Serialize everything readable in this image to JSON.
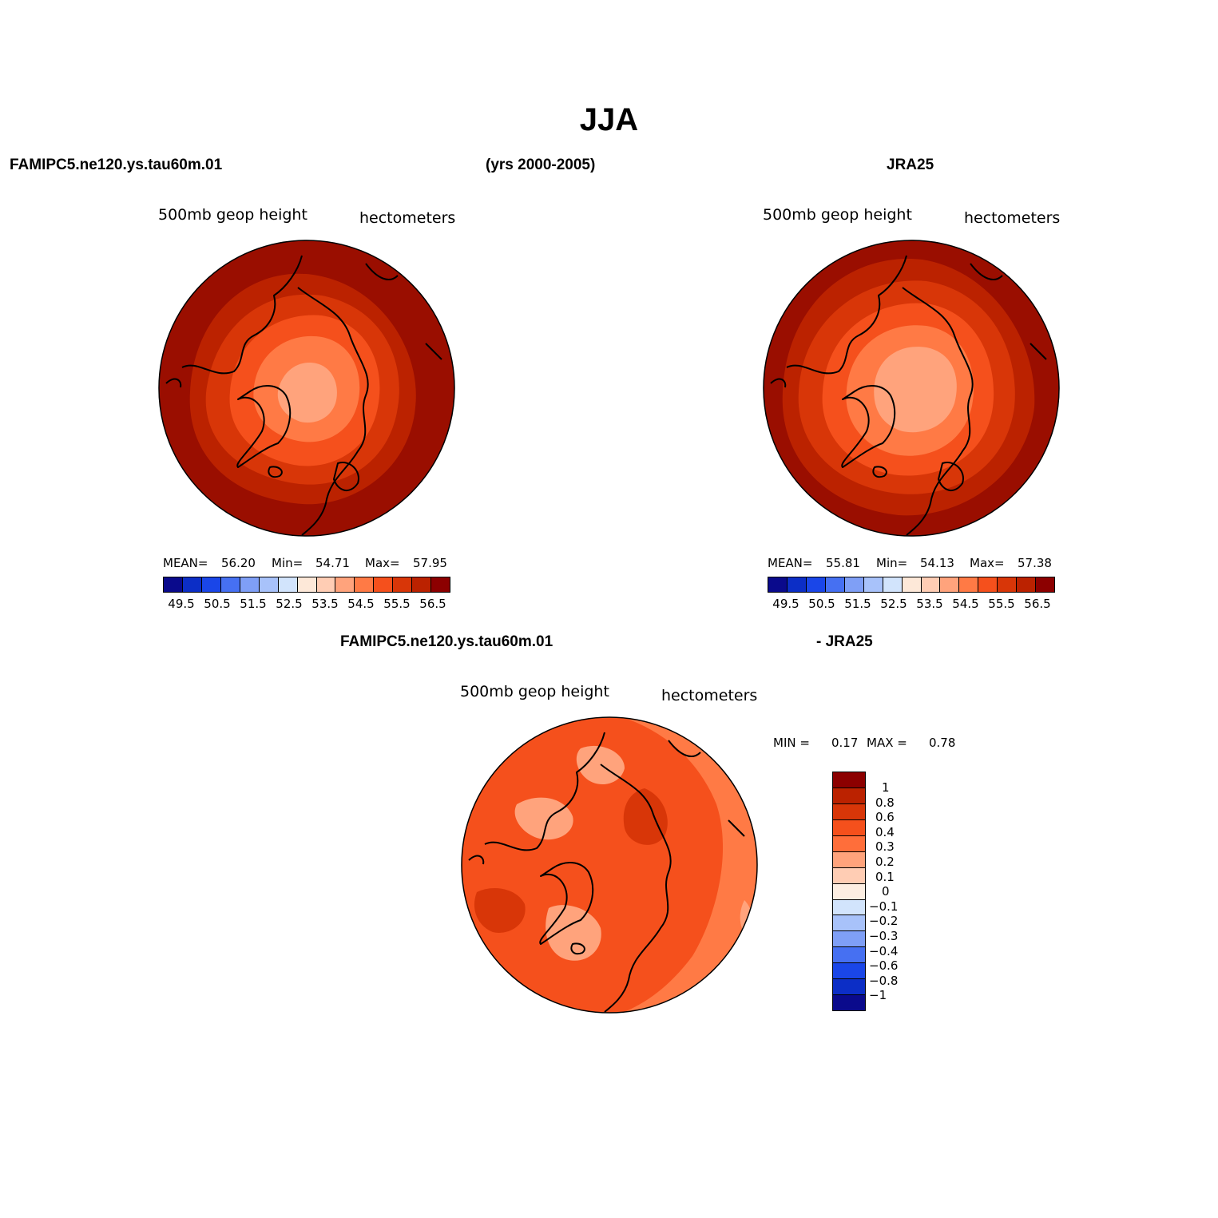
{
  "title": "JJA",
  "header": {
    "model_label": "FAMIPC5.ne120.ys.tau60m.01",
    "years_label": "(yrs 2000-2005)",
    "obs_label": "JRA25"
  },
  "panels": [
    {
      "variable": "500mb  geop  height",
      "units": "hectometers",
      "stats": {
        "mean_label": "MEAN=",
        "mean": "56.20",
        "min_label": "Min=",
        "min": "54.71",
        "max_label": "Max=",
        "max": "57.95"
      },
      "levels": [
        {
          "color": "#9a0e00"
        },
        {
          "color": "#bb2200"
        },
        {
          "color": "#d83608"
        },
        {
          "color": "#f5501c"
        },
        {
          "color": "#ff7a45"
        },
        {
          "color": "#ffa37c"
        }
      ]
    },
    {
      "variable": "500mb  geop  height",
      "units": "hectometers",
      "stats": {
        "mean_label": "MEAN=",
        "mean": "55.81",
        "min_label": "Min=",
        "min": "54.13",
        "max_label": "Max=",
        "max": "57.38"
      },
      "levels": [
        {
          "color": "#9a0e00"
        },
        {
          "color": "#bb2200"
        },
        {
          "color": "#d83608"
        },
        {
          "color": "#f5501c"
        },
        {
          "color": "#ff7a45"
        },
        {
          "color": "#ffa37c"
        }
      ]
    }
  ],
  "abs_colorbar": {
    "colors": [
      "#0a0a8c",
      "#0c2ec6",
      "#1a46e8",
      "#4670f2",
      "#7f9ff6",
      "#a8c2fa",
      "#d2e4fc",
      "#fde8d8",
      "#ffcdb4",
      "#ffa37c",
      "#ff7a45",
      "#f5501c",
      "#d83608",
      "#bb2200",
      "#8c0000"
    ],
    "ticks": [
      "49.5",
      "50.5",
      "51.5",
      "52.5",
      "53.5",
      "54.5",
      "55.5",
      "56.5"
    ]
  },
  "diff": {
    "title_left": "FAMIPC5.ne120.ys.tau60m.01",
    "title_right": "- JRA25",
    "variable": "500mb  geop  height",
    "units": "hectometers",
    "stats": {
      "min_label": "MIN =",
      "min": "0.17",
      "max_label": "MAX =",
      "max": "0.78"
    },
    "colorbar": {
      "colors": [
        "#8c0000",
        "#bb2200",
        "#d83608",
        "#f5501c",
        "#ff6e3a",
        "#ffa37c",
        "#ffcdb4",
        "#fdeee2",
        "#d2e4fc",
        "#a8c2fa",
        "#7f9ff6",
        "#4670f2",
        "#1a46e8",
        "#0c2ec6",
        "#0a0a8c"
      ],
      "ticks": [
        "1",
        "0.8",
        "0.6",
        "0.4",
        "0.3",
        "0.2",
        "0.1",
        "0",
        "−0.1",
        "−0.2",
        "−0.3",
        "−0.4",
        "−0.6",
        "−0.8",
        "−1"
      ]
    }
  }
}
